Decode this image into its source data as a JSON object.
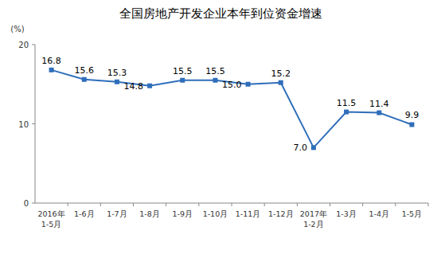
{
  "chart_data": {
    "type": "line",
    "title": "全国房地产开发企业本年到位资金增速",
    "y_label": "(%)",
    "categories": [
      "2016年\n1-5月",
      "1-6月",
      "1-7月",
      "1-8月",
      "1-9月",
      "1-10月",
      "1-11月",
      "1-12月",
      "2017年\n1-2月",
      "1-3月",
      "1-4月",
      "1-5月"
    ],
    "values": [
      16.8,
      15.6,
      15.3,
      14.8,
      15.5,
      15.5,
      15.0,
      15.2,
      7.0,
      11.5,
      11.4,
      9.9
    ],
    "color": "#2f6eba",
    "marker": "square",
    "data_labels": true,
    "grid": false,
    "ylim": [
      0,
      20
    ],
    "yticks": [
      0,
      10,
      20
    ]
  }
}
